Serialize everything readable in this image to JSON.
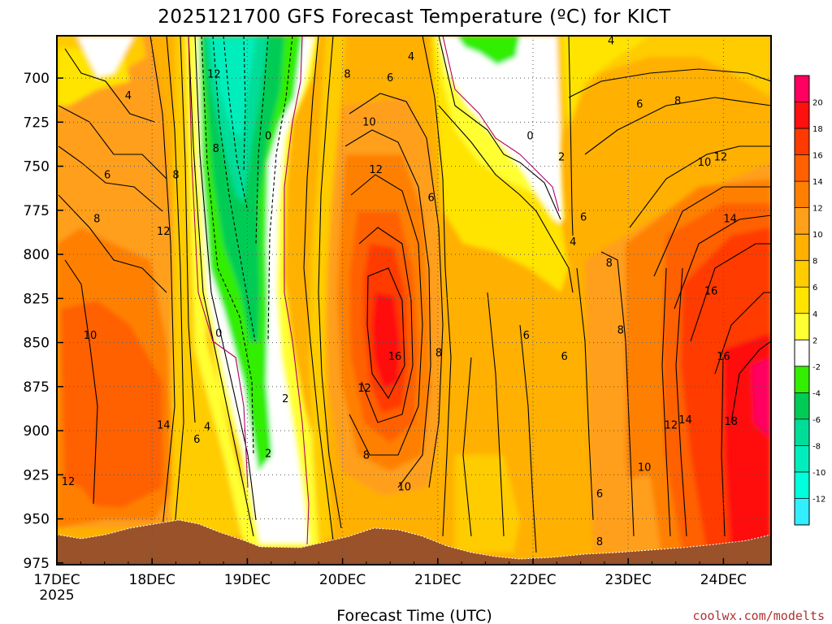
{
  "chart_data": {
    "type": "heatmap",
    "title": "2025121700 GFS Forecast Temperature (ºC) for KICT",
    "xlabel": "Forecast Time (UTC)",
    "ylabel": "",
    "credit": "coolwx.com/modelts",
    "x_ticks": [
      "17DEC",
      "18DEC",
      "19DEC",
      "20DEC",
      "21DEC",
      "22DEC",
      "23DEC",
      "24DEC"
    ],
    "x_sub_label": "2025",
    "xlim_days": [
      0,
      7.5
    ],
    "y_ticks": [
      700,
      725,
      750,
      775,
      800,
      825,
      850,
      875,
      900,
      925,
      950,
      975
    ],
    "ylim_hpa": [
      676,
      976
    ],
    "colorbar": {
      "ticks": [
        20,
        18,
        16,
        14,
        12,
        10,
        8,
        6,
        4,
        2,
        -2,
        -4,
        -6,
        -8,
        -10,
        -12
      ],
      "colors": [
        "#ff0060",
        "#ff1010",
        "#ff3a00",
        "#ff6000",
        "#ff8000",
        "#ff9f1a",
        "#ffb000",
        "#ffcc00",
        "#ffe400",
        "#ffff33",
        "#ffffff",
        "#33ee00",
        "#00cc55",
        "#00dd99",
        "#00eebb",
        "#00ffdd",
        "#33eeff"
      ]
    },
    "contour_labels": [
      {
        "day": 0.75,
        "hpa": 710,
        "label": "4"
      },
      {
        "day": 1.25,
        "hpa": 755,
        "label": "8"
      },
      {
        "day": 1.12,
        "hpa": 787,
        "label": "12"
      },
      {
        "day": 0.53,
        "hpa": 755,
        "label": "6"
      },
      {
        "day": 0.42,
        "hpa": 780,
        "label": "8"
      },
      {
        "day": 0.35,
        "hpa": 846,
        "label": "10"
      },
      {
        "day": 0.12,
        "hpa": 929,
        "label": "12"
      },
      {
        "day": 1.12,
        "hpa": 897,
        "label": "14"
      },
      {
        "day": 1.58,
        "hpa": 898,
        "label": "4"
      },
      {
        "day": 1.47,
        "hpa": 905,
        "label": "6"
      },
      {
        "day": 1.7,
        "hpa": 845,
        "label": "0"
      },
      {
        "day": 1.65,
        "hpa": 698,
        "label": "12"
      },
      {
        "day": 1.67,
        "hpa": 740,
        "label": "8"
      },
      {
        "day": 2.22,
        "hpa": 913,
        "label": "2"
      },
      {
        "day": 2.22,
        "hpa": 733,
        "label": "0"
      },
      {
        "day": 2.4,
        "hpa": 882,
        "label": "2"
      },
      {
        "day": 3.05,
        "hpa": 698,
        "label": "8"
      },
      {
        "day": 3.28,
        "hpa": 725,
        "label": "10"
      },
      {
        "day": 3.35,
        "hpa": 752,
        "label": "12"
      },
      {
        "day": 3.5,
        "hpa": 700,
        "label": "6"
      },
      {
        "day": 3.72,
        "hpa": 688,
        "label": "4"
      },
      {
        "day": 3.93,
        "hpa": 768,
        "label": "6"
      },
      {
        "day": 3.23,
        "hpa": 876,
        "label": "12"
      },
      {
        "day": 3.55,
        "hpa": 858,
        "label": "16"
      },
      {
        "day": 3.25,
        "hpa": 914,
        "label": "8"
      },
      {
        "day": 3.65,
        "hpa": 932,
        "label": "10"
      },
      {
        "day": 4.01,
        "hpa": 856,
        "label": "8"
      },
      {
        "day": 4.97,
        "hpa": 733,
        "label": "0"
      },
      {
        "day": 5.3,
        "hpa": 745,
        "label": "2"
      },
      {
        "day": 5.53,
        "hpa": 779,
        "label": "6"
      },
      {
        "day": 5.42,
        "hpa": 793,
        "label": "4"
      },
      {
        "day": 5.82,
        "hpa": 679,
        "label": "4"
      },
      {
        "day": 6.12,
        "hpa": 715,
        "label": "6"
      },
      {
        "day": 6.52,
        "hpa": 713,
        "label": "8"
      },
      {
        "day": 6.8,
        "hpa": 748,
        "label": "10"
      },
      {
        "day": 6.97,
        "hpa": 745,
        "label": "12"
      },
      {
        "day": 7.07,
        "hpa": 780,
        "label": "14"
      },
      {
        "day": 6.87,
        "hpa": 821,
        "label": "16"
      },
      {
        "day": 7.0,
        "hpa": 858,
        "label": "16"
      },
      {
        "day": 7.08,
        "hpa": 895,
        "label": "18"
      },
      {
        "day": 6.6,
        "hpa": 894,
        "label": "14"
      },
      {
        "day": 6.45,
        "hpa": 897,
        "label": "12"
      },
      {
        "day": 6.17,
        "hpa": 921,
        "label": "10"
      },
      {
        "day": 5.8,
        "hpa": 805,
        "label": "8"
      },
      {
        "day": 5.92,
        "hpa": 843,
        "label": "8"
      },
      {
        "day": 5.33,
        "hpa": 858,
        "label": "6"
      },
      {
        "day": 4.93,
        "hpa": 846,
        "label": "6"
      },
      {
        "day": 5.7,
        "hpa": 936,
        "label": "6"
      },
      {
        "day": 5.7,
        "hpa": 963,
        "label": "8"
      }
    ]
  }
}
